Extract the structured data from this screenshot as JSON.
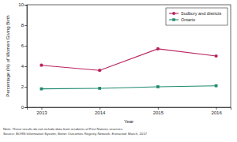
{
  "chart_data": {
    "type": "line",
    "x": [
      2013,
      2014,
      2015,
      2016
    ],
    "xlim": [
      2012.75,
      2016.25
    ],
    "xticks": [
      2013,
      2014,
      2015,
      2016
    ],
    "ylim": [
      0,
      10
    ],
    "yticks": [
      0,
      2,
      4,
      6,
      8,
      10
    ],
    "x_label": "Year",
    "y_label": "Percentage (%) of Women Giving Birth",
    "grid": false,
    "legend": "top-right",
    "series": [
      {
        "name": "Sudbury and districts",
        "color": "#b8235e",
        "marker": "circle",
        "values": [
          4.1,
          3.6,
          5.7,
          5.0
        ]
      },
      {
        "name": "Ontario",
        "color": "#1e8a6e",
        "marker": "square",
        "values": [
          1.8,
          1.85,
          2.0,
          2.1
        ]
      }
    ],
    "annotations": [
      "Note: These results do not include data from residents of First Nations reserves.",
      "Source: BORN Information System, Better Outcomes Registry Network. Extracted: March, 2017"
    ]
  }
}
